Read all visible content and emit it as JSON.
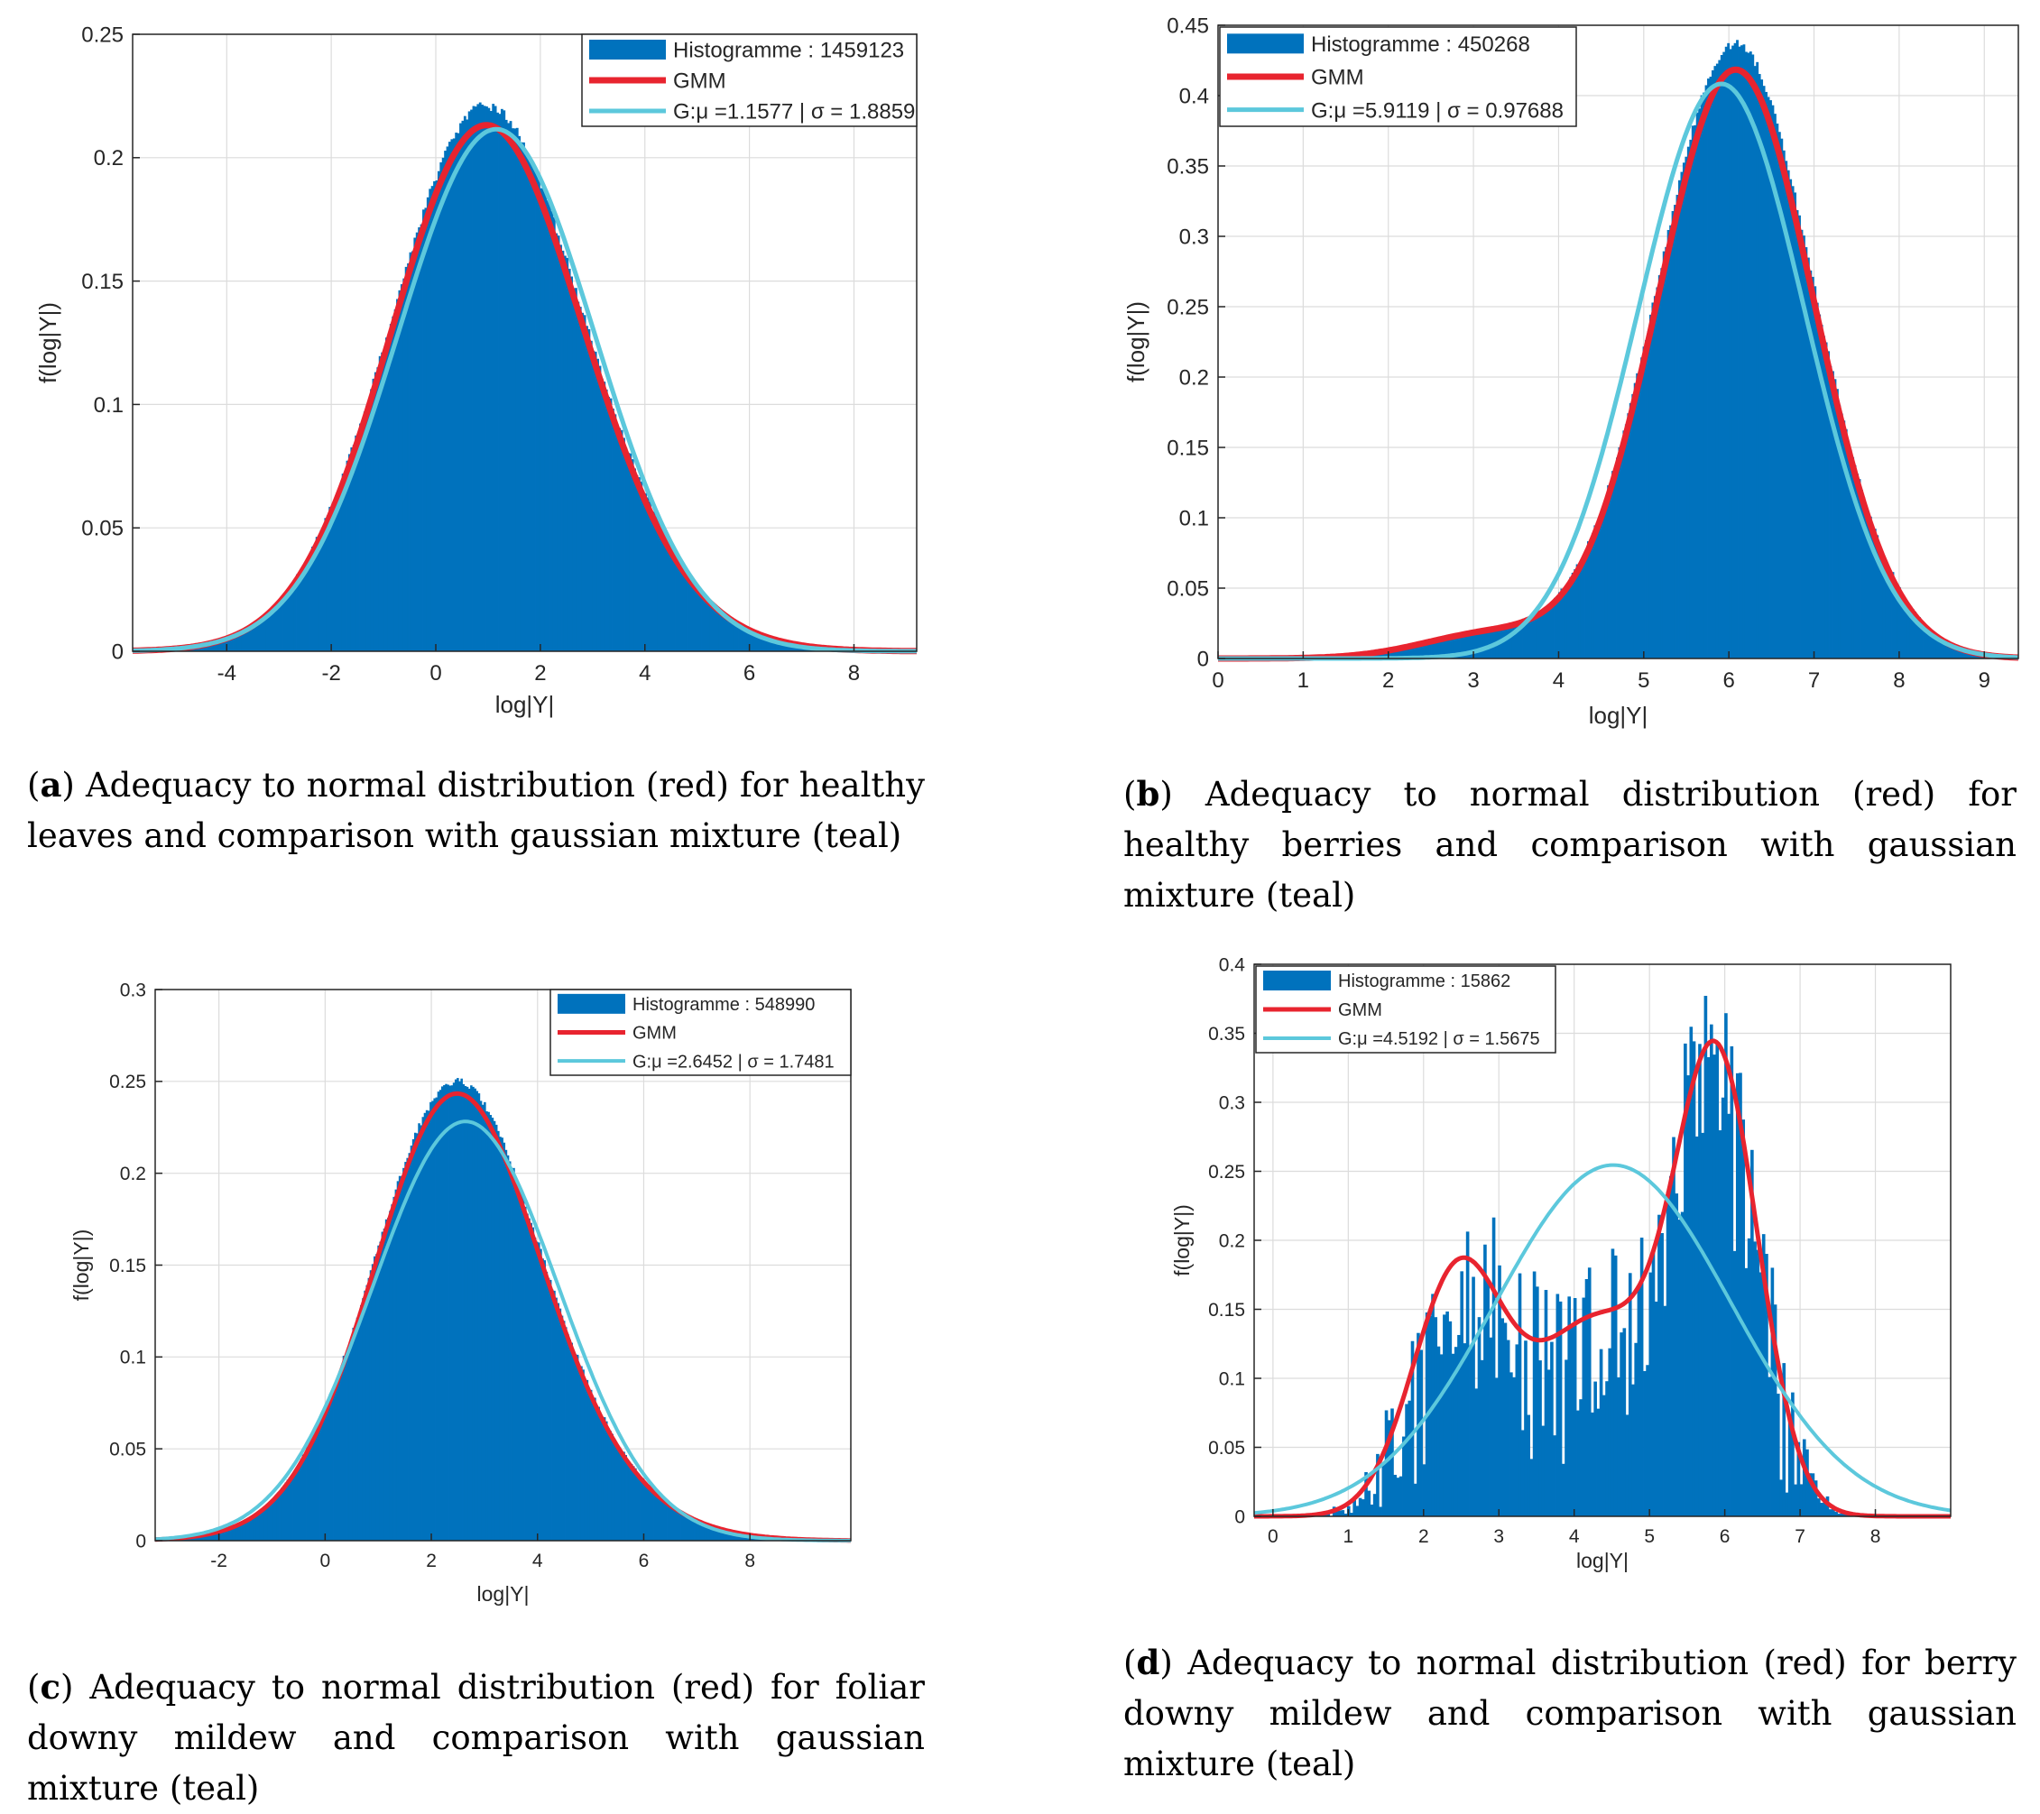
{
  "colors": {
    "histogram": "#0072BD",
    "gmm": "#E8242F",
    "gaussian": "#5CC8DC",
    "grid": "#DCDCDC",
    "axis": "#262626"
  },
  "chart_data": [
    {
      "id": "a",
      "type": "histogram",
      "ylabel": "f(log|Y|)",
      "xlabel": "log|Y|",
      "xlim": [
        -5.8,
        9.2
      ],
      "ylim": [
        0,
        0.25
      ],
      "xticks": [
        -4,
        -2,
        0,
        2,
        4,
        6,
        8
      ],
      "xticklabels": [
        "-4",
        "-2",
        "0",
        "2",
        "4",
        "6",
        "8"
      ],
      "yticks": [
        0,
        0.05,
        0.1,
        0.15,
        0.2,
        0.25
      ],
      "yticklabels": [
        "0",
        "0.05",
        "0.1",
        "0.15",
        "0.2",
        "0.25"
      ],
      "legend": [
        "Histogramme : 1459123",
        "GMM",
        "G:μ =1.1577 | σ = 1.8859"
      ],
      "legend_location": "top-right",
      "gaussian": {
        "mu": 1.1577,
        "sigma": 1.8859
      },
      "gmm": [
        {
          "w": 0.55,
          "mu": 0.75,
          "s": 1.7
        },
        {
          "w": 0.45,
          "mu": 1.45,
          "s": 2.05
        }
      ],
      "histogram_peak": {
        "x": 1.0,
        "y": 0.221
      },
      "noise": 0.004,
      "caption": {
        "tag": "a",
        "text": "Adequacy to normal distribution (red) for healthy leaves and comparison with gaussian mixture (teal)"
      }
    },
    {
      "id": "b",
      "type": "histogram",
      "ylabel": "f(log|Y|)",
      "xlabel": "log|Y|",
      "xlim": [
        0,
        9.4
      ],
      "ylim": [
        0,
        0.45
      ],
      "xticks": [
        0,
        1,
        2,
        3,
        4,
        5,
        6,
        7,
        8,
        9
      ],
      "xticklabels": [
        "0",
        "1",
        "2",
        "3",
        "4",
        "5",
        "6",
        "7",
        "8",
        "9"
      ],
      "yticks": [
        0,
        0.05,
        0.1,
        0.15,
        0.2,
        0.25,
        0.3,
        0.35,
        0.4,
        0.45
      ],
      "yticklabels": [
        "0",
        "0.05",
        "0.1",
        "0.15",
        "0.2",
        "0.25",
        "0.3",
        "0.35",
        "0.4",
        "0.45"
      ],
      "legend": [
        "Histogramme : 450268",
        "GMM",
        "G:μ =5.9119 | σ = 0.97688"
      ],
      "legend_location": "top-left",
      "gaussian": {
        "mu": 5.9119,
        "sigma": 0.97688
      },
      "gmm": [
        {
          "w": 0.965,
          "mu": 6.08,
          "s": 0.92
        },
        {
          "w": 0.035,
          "mu": 3.2,
          "s": 0.8
        }
      ],
      "histogram_peak": {
        "x": 6.1,
        "y": 0.437
      },
      "noise": 0.006,
      "caption": {
        "tag": "b",
        "text": "Adequacy to normal distribution (red) for healthy berries and comparison with gaussian mixture (teal)"
      }
    },
    {
      "id": "c",
      "type": "histogram",
      "ylabel": "f(log|Y|)",
      "xlabel": "log|Y|",
      "xlim": [
        -3.2,
        9.9
      ],
      "ylim": [
        0,
        0.3
      ],
      "xticks": [
        -2,
        0,
        2,
        4,
        6,
        8
      ],
      "xticklabels": [
        "-2",
        "0",
        "2",
        "4",
        "6",
        "8"
      ],
      "yticks": [
        0,
        0.05,
        0.1,
        0.15,
        0.2,
        0.25,
        0.3
      ],
      "yticklabels": [
        "0",
        "0.05",
        "0.1",
        "0.15",
        "0.2",
        "0.25",
        "0.3"
      ],
      "legend": [
        "Histogramme : 548990",
        "GMM",
        "G:μ =2.6452 | σ = 1.7481"
      ],
      "legend_location": "top-right",
      "gaussian": {
        "mu": 2.6452,
        "sigma": 1.7481
      },
      "gmm": [
        {
          "w": 0.6,
          "mu": 2.35,
          "s": 1.45
        },
        {
          "w": 0.4,
          "mu": 3.0,
          "s": 1.95
        }
      ],
      "histogram_peak": {
        "x": 2.6,
        "y": 0.25
      },
      "noise": 0.004,
      "caption": {
        "tag": "c",
        "text": "Adequacy to normal distribution (red) for foliar downy mildew and comparison with gaussian mixture (teal)"
      }
    },
    {
      "id": "d",
      "type": "histogram",
      "ylabel": "f(log|Y|)",
      "xlabel": "log|Y|",
      "xlim": [
        -0.25,
        9
      ],
      "ylim": [
        0,
        0.4
      ],
      "xticks": [
        0,
        1,
        2,
        3,
        4,
        5,
        6,
        7,
        8
      ],
      "xticklabels": [
        "0",
        "1",
        "2",
        "3",
        "4",
        "5",
        "6",
        "7",
        "8"
      ],
      "yticks": [
        0,
        0.05,
        0.1,
        0.15,
        0.2,
        0.25,
        0.3,
        0.35,
        0.4
      ],
      "yticklabels": [
        "0",
        "0.05",
        "0.1",
        "0.15",
        "0.2",
        "0.25",
        "0.3",
        "0.35",
        "0.4"
      ],
      "legend": [
        "Histogramme : 15862",
        "GMM",
        "G:μ =4.5192 | σ = 1.5675"
      ],
      "legend_location": "top-left",
      "gaussian": {
        "mu": 4.5192,
        "sigma": 1.5675
      },
      "gmm": [
        {
          "w": 0.26,
          "mu": 2.45,
          "s": 0.6
        },
        {
          "w": 0.3,
          "mu": 4.3,
          "s": 0.85
        },
        {
          "w": 0.44,
          "mu": 5.9,
          "s": 0.55
        }
      ],
      "histogram_peak": {
        "x": 6.0,
        "y": 0.37
      },
      "noise": 0.07,
      "caption": {
        "tag": "d",
        "text": "Adequacy to normal distribution (red) for berry downy mildew and comparison with gaussian mixture (teal)"
      }
    }
  ]
}
